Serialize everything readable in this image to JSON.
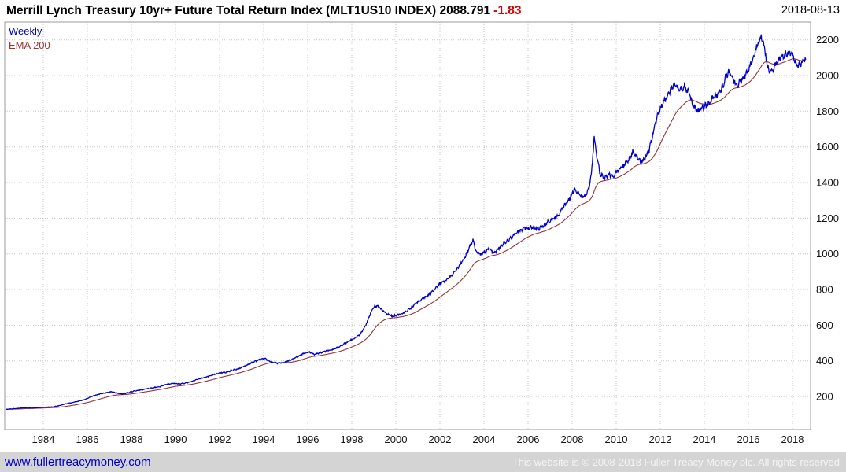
{
  "header": {
    "title": "Merrill Lynch Treasury 10yr+ Future Total Return Index (MLT1US10 INDEX) 2088.791",
    "change": "-1.83",
    "date": "2018-08-13"
  },
  "footer": {
    "link": "www.fullertreacymoney.com",
    "copyright": "This website is © 2008-2018 Fuller Treacy Money plc. All rights reserved"
  },
  "colors": {
    "price": "#0000cc",
    "ema": "#993333",
    "change_negative": "#d40000",
    "footer_link": "#0000c8",
    "footer_text": "#f4f4f4",
    "grid": "#c6c6c6",
    "frame": "#999999",
    "footer_bg": "#d4d4d4"
  },
  "chart_data": {
    "type": "line",
    "title": "Merrill Lynch Treasury 10yr+ Future Total Return Index (MLT1US10 INDEX)",
    "frequency": "Weekly",
    "last_value": 2088.791,
    "change": -1.83,
    "date": "2018-08-13",
    "grid": true,
    "legend_position": "top-left",
    "x_ticks": [
      1984,
      1986,
      1988,
      1990,
      1992,
      1994,
      1996,
      1998,
      2000,
      2002,
      2004,
      2006,
      2008,
      2010,
      2012,
      2014,
      2016,
      2018
    ],
    "y_ticks": [
      200,
      400,
      600,
      800,
      1000,
      1200,
      1400,
      1600,
      1800,
      2000,
      2200
    ],
    "x_range": [
      1982.25,
      2018.82
    ],
    "y_range": [
      15,
      2300
    ],
    "series": [
      {
        "name": "Weekly",
        "color": "#0000cc",
        "points": [
          [
            1982.3,
            128
          ],
          [
            1982.6,
            131
          ],
          [
            1982.9,
            134
          ],
          [
            1983.2,
            137
          ],
          [
            1983.5,
            135
          ],
          [
            1983.8,
            138
          ],
          [
            1984.1,
            140
          ],
          [
            1984.4,
            141
          ],
          [
            1984.7,
            148
          ],
          [
            1985.0,
            158
          ],
          [
            1985.3,
            166
          ],
          [
            1985.6,
            174
          ],
          [
            1985.9,
            184
          ],
          [
            1986.2,
            200
          ],
          [
            1986.5,
            212
          ],
          [
            1986.8,
            220
          ],
          [
            1987.1,
            227
          ],
          [
            1987.35,
            219
          ],
          [
            1987.6,
            214
          ],
          [
            1987.85,
            222
          ],
          [
            1988.1,
            230
          ],
          [
            1988.4,
            237
          ],
          [
            1988.7,
            243
          ],
          [
            1989.0,
            249
          ],
          [
            1989.3,
            256
          ],
          [
            1989.6,
            268
          ],
          [
            1989.9,
            274
          ],
          [
            1990.2,
            271
          ],
          [
            1990.5,
            276
          ],
          [
            1990.8,
            288
          ],
          [
            1991.1,
            300
          ],
          [
            1991.4,
            310
          ],
          [
            1991.7,
            322
          ],
          [
            1992.0,
            332
          ],
          [
            1992.3,
            336
          ],
          [
            1992.6,
            348
          ],
          [
            1992.9,
            358
          ],
          [
            1993.2,
            374
          ],
          [
            1993.5,
            392
          ],
          [
            1993.8,
            406
          ],
          [
            1994.05,
            414
          ],
          [
            1994.3,
            396
          ],
          [
            1994.6,
            387
          ],
          [
            1994.9,
            390
          ],
          [
            1995.2,
            404
          ],
          [
            1995.5,
            422
          ],
          [
            1995.8,
            440
          ],
          [
            1996.05,
            450
          ],
          [
            1996.3,
            437
          ],
          [
            1996.6,
            446
          ],
          [
            1996.9,
            458
          ],
          [
            1997.2,
            466
          ],
          [
            1997.5,
            484
          ],
          [
            1997.8,
            505
          ],
          [
            1998.1,
            524
          ],
          [
            1998.4,
            550
          ],
          [
            1998.65,
            605
          ],
          [
            1998.85,
            665
          ],
          [
            1999.0,
            700
          ],
          [
            1999.15,
            710
          ],
          [
            1999.35,
            688
          ],
          [
            1999.6,
            662
          ],
          [
            1999.85,
            648
          ],
          [
            2000.1,
            658
          ],
          [
            2000.4,
            672
          ],
          [
            2000.7,
            698
          ],
          [
            2000.95,
            728
          ],
          [
            2001.2,
            748
          ],
          [
            2001.5,
            772
          ],
          [
            2001.8,
            806
          ],
          [
            2002.0,
            832
          ],
          [
            2002.3,
            852
          ],
          [
            2002.6,
            888
          ],
          [
            2002.9,
            938
          ],
          [
            2003.1,
            972
          ],
          [
            2003.35,
            1040
          ],
          [
            2003.5,
            1075
          ],
          [
            2003.65,
            1015
          ],
          [
            2003.85,
            995
          ],
          [
            2004.05,
            1015
          ],
          [
            2004.25,
            1035
          ],
          [
            2004.45,
            1005
          ],
          [
            2004.7,
            1035
          ],
          [
            2004.95,
            1065
          ],
          [
            2005.2,
            1085
          ],
          [
            2005.45,
            1115
          ],
          [
            2005.7,
            1135
          ],
          [
            2005.95,
            1145
          ],
          [
            2006.2,
            1150
          ],
          [
            2006.5,
            1142
          ],
          [
            2006.8,
            1168
          ],
          [
            2007.05,
            1190
          ],
          [
            2007.3,
            1205
          ],
          [
            2007.6,
            1262
          ],
          [
            2007.9,
            1315
          ],
          [
            2008.1,
            1362
          ],
          [
            2008.3,
            1335
          ],
          [
            2008.55,
            1322
          ],
          [
            2008.75,
            1358
          ],
          [
            2008.9,
            1480
          ],
          [
            2009.0,
            1660
          ],
          [
            2009.1,
            1565
          ],
          [
            2009.25,
            1455
          ],
          [
            2009.45,
            1425
          ],
          [
            2009.65,
            1445
          ],
          [
            2009.85,
            1432
          ],
          [
            2010.05,
            1468
          ],
          [
            2010.3,
            1492
          ],
          [
            2010.55,
            1525
          ],
          [
            2010.75,
            1572
          ],
          [
            2010.95,
            1545
          ],
          [
            2011.1,
            1512
          ],
          [
            2011.3,
            1535
          ],
          [
            2011.5,
            1585
          ],
          [
            2011.7,
            1690
          ],
          [
            2011.85,
            1768
          ],
          [
            2012.0,
            1815
          ],
          [
            2012.15,
            1852
          ],
          [
            2012.35,
            1892
          ],
          [
            2012.55,
            1938
          ],
          [
            2012.7,
            1952
          ],
          [
            2012.9,
            1918
          ],
          [
            2013.1,
            1942
          ],
          [
            2013.3,
            1898
          ],
          [
            2013.5,
            1832
          ],
          [
            2013.7,
            1798
          ],
          [
            2013.9,
            1822
          ],
          [
            2014.1,
            1832
          ],
          [
            2014.35,
            1868
          ],
          [
            2014.6,
            1895
          ],
          [
            2014.8,
            1928
          ],
          [
            2014.97,
            1992
          ],
          [
            2015.1,
            2022
          ],
          [
            2015.3,
            1978
          ],
          [
            2015.5,
            1948
          ],
          [
            2015.7,
            1982
          ],
          [
            2015.9,
            2005
          ],
          [
            2016.05,
            2042
          ],
          [
            2016.25,
            2115
          ],
          [
            2016.45,
            2182
          ],
          [
            2016.58,
            2215
          ],
          [
            2016.72,
            2165
          ],
          [
            2016.85,
            2062
          ],
          [
            2016.97,
            2015
          ],
          [
            2017.1,
            2035
          ],
          [
            2017.3,
            2078
          ],
          [
            2017.5,
            2108
          ],
          [
            2017.7,
            2122
          ],
          [
            2017.9,
            2132
          ],
          [
            2018.0,
            2112
          ],
          [
            2018.12,
            2082
          ],
          [
            2018.27,
            2052
          ],
          [
            2018.42,
            2075
          ],
          [
            2018.55,
            2095
          ],
          [
            2018.6,
            2089
          ]
        ]
      },
      {
        "name": "EMA 200",
        "color": "#993333",
        "type": "ema",
        "period": 200,
        "derived_from": "Weekly"
      }
    ]
  }
}
